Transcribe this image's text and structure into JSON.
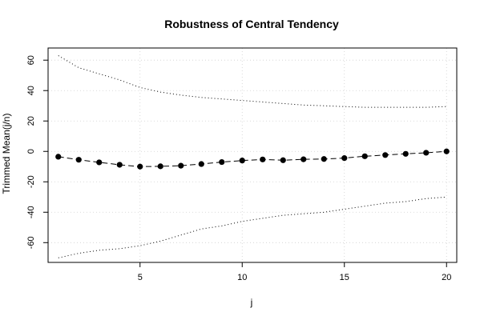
{
  "chart_data": {
    "type": "line",
    "title": "Robustness of Central Tendency",
    "xlabel": "j",
    "ylabel": "Trimmed Mean(j/n)",
    "xlim": [
      0.5,
      20.5
    ],
    "ylim": [
      -73,
      68
    ],
    "xticks": [
      5,
      10,
      15,
      20
    ],
    "yticks": [
      -60,
      -40,
      -20,
      0,
      20,
      40,
      60
    ],
    "grid": true,
    "x": [
      1,
      2,
      3,
      4,
      5,
      6,
      7,
      8,
      9,
      10,
      11,
      12,
      13,
      14,
      15,
      16,
      17,
      18,
      19,
      20
    ],
    "series": [
      {
        "style": "dashed-with-points",
        "color": "#000000",
        "values": [
          -3.5,
          -5.5,
          -7.2,
          -8.8,
          -10.0,
          -9.8,
          -9.4,
          -8.3,
          -7.0,
          -6.0,
          -5.3,
          -5.8,
          -5.2,
          -5.0,
          -4.4,
          -3.2,
          -2.4,
          -1.6,
          -0.9,
          0.0
        ]
      },
      {
        "style": "dotted",
        "color": "#000000",
        "values": [
          63,
          55,
          51,
          47,
          42,
          39,
          37,
          35.5,
          34.5,
          33.5,
          32.5,
          31.5,
          30.5,
          30,
          29.5,
          29,
          29,
          29,
          29,
          29.5
        ]
      },
      {
        "style": "dotted",
        "color": "#000000",
        "values": [
          -70,
          -67,
          -65,
          -64,
          -62,
          -59,
          -55,
          -51,
          -49,
          -46,
          -44,
          -42,
          -41,
          -40,
          -38,
          -36,
          -34,
          -33,
          -31,
          -30
        ]
      }
    ]
  }
}
